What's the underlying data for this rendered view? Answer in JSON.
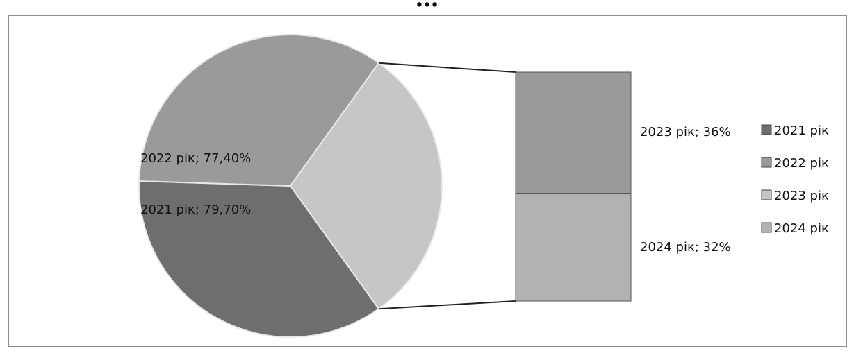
{
  "title": "…",
  "chart_data": {
    "type": "pie",
    "subtype": "bar-of-pie",
    "categories": [
      "2021 рік",
      "2022 рік",
      "2023 рік",
      "2024 рік"
    ],
    "values": [
      79.7,
      77.4,
      36,
      32
    ],
    "data_labels": [
      "2021 рік; 79,70%",
      "2022 рік; 77,40%",
      "2023 рік; 36%",
      "2024 рік; 32%"
    ],
    "legend": {
      "position": "right",
      "entries": [
        "2021 рік",
        "2022 рік",
        "2023 рік",
        "2024 рік"
      ]
    },
    "colors": [
      "#6e6e6e",
      "#9a9a9a",
      "#c6c6c6",
      "#b2b2b2"
    ]
  }
}
